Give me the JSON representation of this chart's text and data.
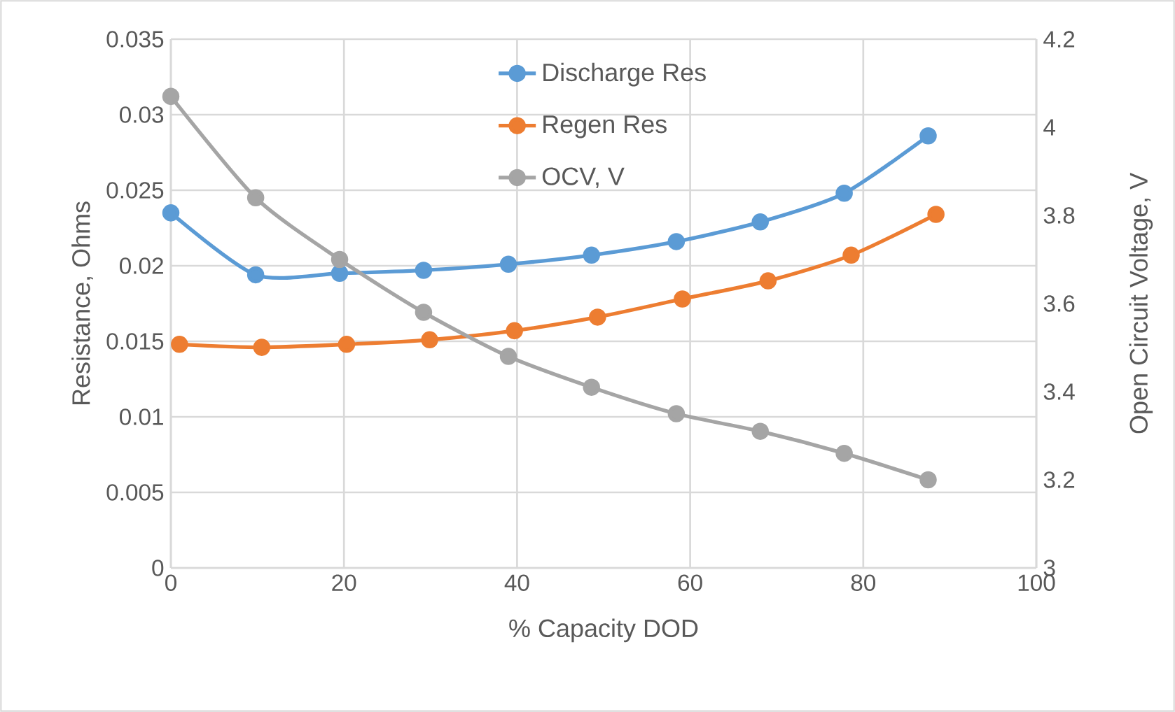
{
  "chart_data": {
    "type": "line",
    "xlabel": "% Capacity DOD",
    "ylabel": "Resistance, Ohms",
    "y2label": "Open Circuit Voltage, V",
    "xlim": [
      0,
      100
    ],
    "xticks": [
      0,
      20,
      40,
      60,
      80,
      100
    ],
    "ylim": [
      0,
      0.035
    ],
    "yticks": [
      0,
      0.005,
      0.01,
      0.015,
      0.02,
      0.025,
      0.03,
      0.035
    ],
    "y2lim": [
      3,
      4.2
    ],
    "y2ticks": [
      3,
      3.2,
      3.4,
      3.6,
      3.8,
      4,
      4.2
    ],
    "grid": true,
    "legend": "top",
    "marker": "circle",
    "line_style": "solid",
    "series": [
      {
        "name": "Discharge Res",
        "color": "#5b9bd5",
        "x": [
          0,
          9.8,
          19.5,
          29.2,
          39,
          48.6,
          58.4,
          68.1,
          77.8,
          87.5
        ],
        "values": [
          0.0235,
          0.0194,
          0.0195,
          0.0197,
          0.0201,
          0.0207,
          0.0216,
          0.0229,
          0.0248,
          0.0286
        ]
      },
      {
        "name": "Regen Res",
        "color": "#ed7d31",
        "x": [
          1,
          10.5,
          20.3,
          29.9,
          39.7,
          49.3,
          59.1,
          69,
          78.6,
          88.4
        ],
        "values": [
          0.0148,
          0.0146,
          0.0148,
          0.0151,
          0.0157,
          0.0166,
          0.0178,
          0.019,
          0.0207,
          0.0234
        ]
      },
      {
        "name": "OCV, V",
        "color": "#a5a5a5",
        "axis": "y2",
        "x": [
          0,
          9.8,
          19.5,
          29.2,
          39,
          48.6,
          58.4,
          68.1,
          77.8,
          87.5
        ],
        "values": [
          4.07,
          3.84,
          3.7,
          3.58,
          3.48,
          3.41,
          3.35,
          3.31,
          3.26,
          3.2
        ]
      }
    ]
  }
}
